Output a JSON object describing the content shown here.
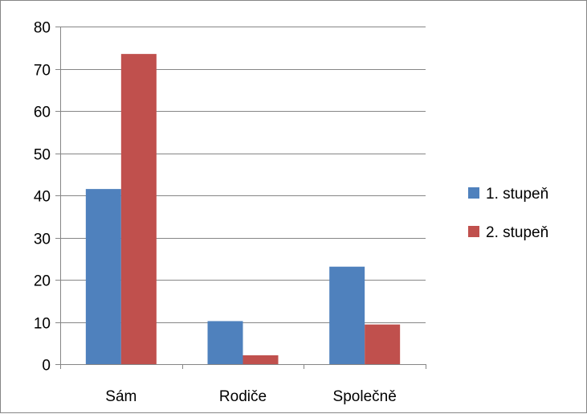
{
  "chart_data": {
    "type": "bar",
    "categories": [
      "Sám",
      "Rodiče",
      "Společně"
    ],
    "series": [
      {
        "name": "1. stupeň",
        "values": [
          41.5,
          10.2,
          23.1
        ],
        "color": "#4F81BD"
      },
      {
        "name": "2. stupeň",
        "values": [
          73.5,
          2.1,
          9.4
        ],
        "color": "#C0504D"
      }
    ],
    "ylim": [
      0,
      80
    ],
    "yticks": [
      0,
      10,
      20,
      30,
      40,
      50,
      60,
      70,
      80
    ],
    "grid": true,
    "legend_position": "right",
    "title": "",
    "xlabel": "",
    "ylabel": ""
  }
}
